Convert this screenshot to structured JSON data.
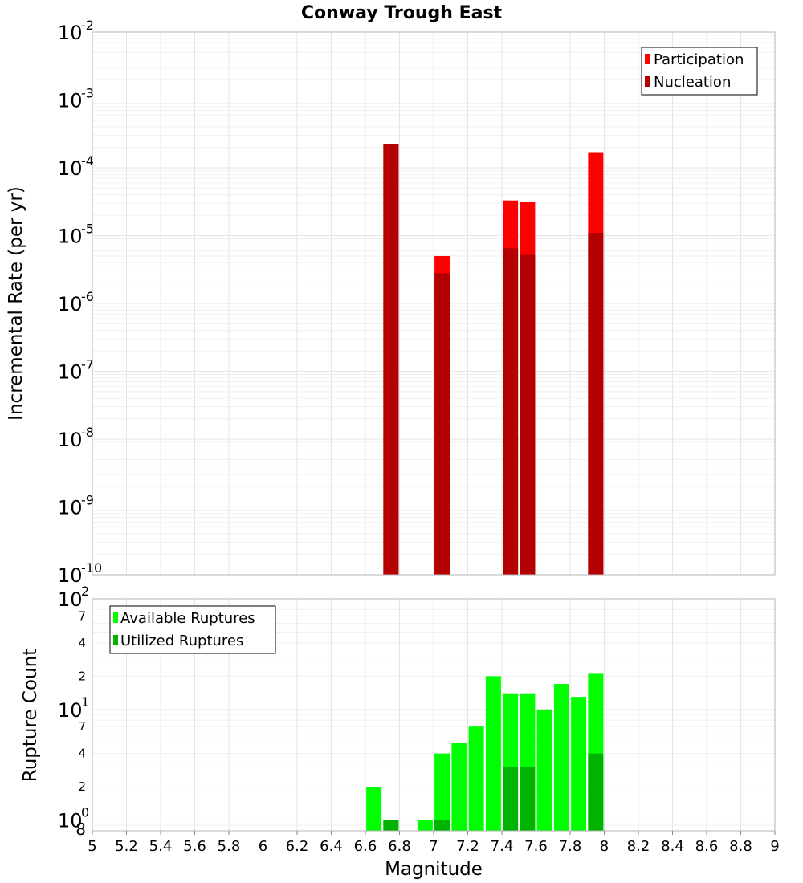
{
  "chart_data": [
    {
      "type": "bar",
      "title": "Conway Trough East",
      "xlabel": "",
      "ylabel": "Incremental Rate (per yr)",
      "yscale": "log",
      "ylim": [
        1e-10,
        0.01
      ],
      "xlim": [
        5,
        9
      ],
      "y_tick_exponents": [
        "-10",
        "-9",
        "-8",
        "-7",
        "-6",
        "-5",
        "-4",
        "-3",
        "-2"
      ],
      "y_tick_base": "10",
      "legend": {
        "position": "top-right",
        "entries": [
          "Participation",
          "Nucleation"
        ]
      },
      "series": [
        {
          "name": "Participation",
          "color": "#ff0000",
          "points": [
            {
              "x": 6.75,
              "y": 0.00022
            },
            {
              "x": 7.05,
              "y": 5e-06
            },
            {
              "x": 7.45,
              "y": 3.3e-05
            },
            {
              "x": 7.55,
              "y": 3.1e-05
            },
            {
              "x": 7.95,
              "y": 0.00017
            }
          ]
        },
        {
          "name": "Nucleation",
          "color": "#b30000",
          "points": [
            {
              "x": 6.75,
              "y": 0.00022
            },
            {
              "x": 7.05,
              "y": 2.8e-06
            },
            {
              "x": 7.45,
              "y": 6.5e-06
            },
            {
              "x": 7.55,
              "y": 5.2e-06
            },
            {
              "x": 7.95,
              "y": 1.1e-05
            }
          ]
        }
      ]
    },
    {
      "type": "bar",
      "title": "",
      "xlabel": "Magnitude",
      "ylabel": "Rupture Count",
      "yscale": "log",
      "ylim": [
        0.8,
        100
      ],
      "xlim": [
        5,
        9
      ],
      "x_ticks": [
        "5",
        "5.2",
        "5.4",
        "5.6",
        "5.8",
        "6",
        "6.2",
        "6.4",
        "6.6",
        "6.8",
        "7",
        "7.2",
        "7.4",
        "7.6",
        "7.8",
        "8",
        "8.2",
        "8.4",
        "8.6",
        "8.8",
        "9"
      ],
      "y_major_ticks": [
        {
          "value": 1,
          "base": "10",
          "exp": "0"
        },
        {
          "value": 10,
          "base": "10",
          "exp": "1"
        },
        {
          "value": 100,
          "base": "10",
          "exp": "2"
        }
      ],
      "y_minor_ticks": [
        {
          "value": 0.8,
          "label": "8"
        },
        {
          "value": 2,
          "label": "2"
        },
        {
          "value": 4,
          "label": "4"
        },
        {
          "value": 7,
          "label": "7"
        },
        {
          "value": 20,
          "label": "2"
        },
        {
          "value": 40,
          "label": "4"
        },
        {
          "value": 70,
          "label": "7"
        }
      ],
      "legend": {
        "position": "top-left",
        "entries": [
          "Available Ruptures",
          "Utilized Ruptures"
        ]
      },
      "series": [
        {
          "name": "Available Ruptures",
          "color": "#00ff00",
          "points": [
            {
              "x": 6.65,
              "y": 2
            },
            {
              "x": 6.75,
              "y": 1
            },
            {
              "x": 6.95,
              "y": 1
            },
            {
              "x": 7.05,
              "y": 4
            },
            {
              "x": 7.15,
              "y": 5
            },
            {
              "x": 7.25,
              "y": 7
            },
            {
              "x": 7.35,
              "y": 20
            },
            {
              "x": 7.45,
              "y": 14
            },
            {
              "x": 7.55,
              "y": 14
            },
            {
              "x": 7.65,
              "y": 10
            },
            {
              "x": 7.75,
              "y": 17
            },
            {
              "x": 7.85,
              "y": 13
            },
            {
              "x": 7.95,
              "y": 21
            }
          ]
        },
        {
          "name": "Utilized Ruptures",
          "color": "#00b300",
          "points": [
            {
              "x": 6.75,
              "y": 1
            },
            {
              "x": 7.05,
              "y": 1
            },
            {
              "x": 7.45,
              "y": 3
            },
            {
              "x": 7.55,
              "y": 3
            },
            {
              "x": 7.95,
              "y": 4
            }
          ]
        }
      ]
    }
  ]
}
